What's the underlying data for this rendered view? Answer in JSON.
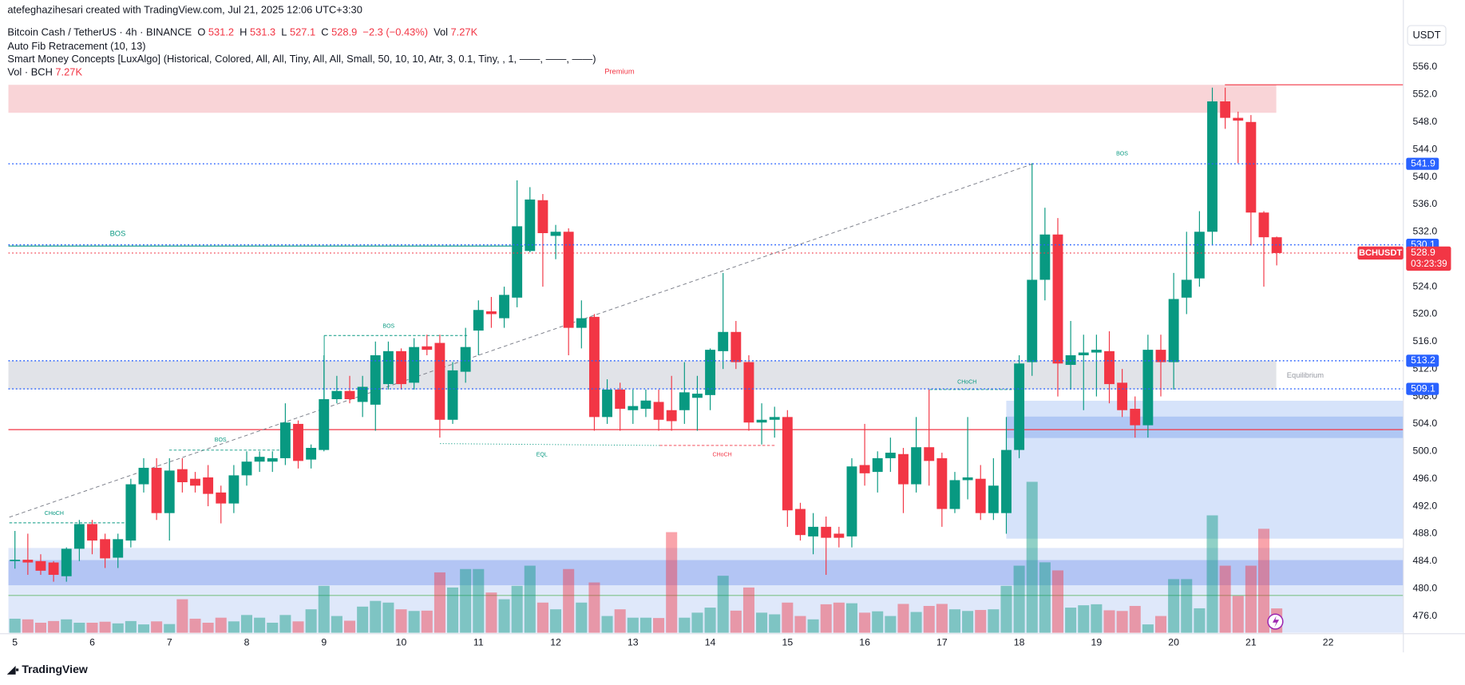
{
  "header": {
    "credit": "atefeghazihesari created with TradingView.com, Jul 21, 2025 12:06 UTC+3:30",
    "symbol": "Bitcoin Cash / TetherUS · 4h · BINANCE",
    "ohlc_labels": [
      "O",
      "H",
      "L",
      "C"
    ],
    "change": "−2.3 (−0.43%)",
    "vol_label": "Vol",
    "volume_label": "7.27K",
    "indicators": [
      "Auto Fib Retracement (10, 13)",
      "Smart Money Concepts [LuxAlgo] (Historical, Colored, All, All, Tiny, All, All, Small, 50, 10, 10, Atr, 3, 0.1, Tiny, , 1, ——, ——, ——)",
      "Vol · BCH"
    ],
    "currency": "USDT",
    "footer": "TradingView"
  },
  "chart_data": {
    "type": "candlestick",
    "up_color": "#089981",
    "down_color": "#f23645",
    "volume_up_color": "rgba(8,153,129,0.45)",
    "volume_down_color": "rgba(242,54,69,0.45)",
    "grid": false,
    "ylim": [
      473.42,
      563.06
    ],
    "yticks": [
      {
        "value": 476,
        "label": "476.0"
      },
      {
        "value": 480,
        "label": "480.0"
      },
      {
        "value": 484,
        "label": "484.0"
      },
      {
        "value": 488,
        "label": "488.0"
      },
      {
        "value": 492,
        "label": "492.0"
      },
      {
        "value": 496,
        "label": "496.0"
      },
      {
        "value": 500,
        "label": "500.0"
      },
      {
        "value": 504,
        "label": "504.0"
      },
      {
        "value": 508,
        "label": "508.0"
      },
      {
        "value": 512,
        "label": "512.0"
      },
      {
        "value": 516,
        "label": "516.0"
      },
      {
        "value": 520,
        "label": "520.0"
      },
      {
        "value": 524,
        "label": "524.0"
      },
      {
        "value": 528,
        "label": "528.0"
      },
      {
        "value": 532,
        "label": "532.0"
      },
      {
        "value": 536,
        "label": "536.0"
      },
      {
        "value": 540,
        "label": "540.0"
      },
      {
        "value": 544,
        "label": "544.0"
      },
      {
        "value": 548,
        "label": "548.0"
      },
      {
        "value": 552,
        "label": "552.0"
      },
      {
        "value": 556,
        "label": "556.0"
      }
    ],
    "categories": [
      "5",
      null,
      null,
      null,
      null,
      null,
      "6",
      null,
      null,
      null,
      null,
      null,
      "7",
      null,
      null,
      null,
      null,
      null,
      "8",
      null,
      null,
      null,
      null,
      null,
      "9",
      null,
      null,
      null,
      null,
      null,
      "10",
      null,
      null,
      null,
      null,
      null,
      "11",
      null,
      null,
      null,
      null,
      null,
      "12",
      null,
      null,
      null,
      null,
      null,
      "13",
      null,
      null,
      null,
      null,
      null,
      "14",
      null,
      null,
      null,
      null,
      null,
      "15",
      null,
      null,
      null,
      null,
      null,
      "16",
      null,
      null,
      null,
      null,
      null,
      "17",
      null,
      null,
      null,
      null,
      null,
      "18",
      null,
      null,
      null,
      null,
      null,
      "19",
      null,
      null,
      null,
      null,
      null,
      "20",
      null,
      null,
      null,
      null,
      null,
      "21",
      null,
      null,
      null,
      null,
      null,
      "22"
    ],
    "open": [
      484,
      484.2,
      484,
      483.8,
      481.8,
      485.8,
      489.4,
      487.2,
      484.5,
      487,
      495.2,
      497.6,
      491,
      497.4,
      496,
      496.2,
      494,
      492.4,
      496.5,
      498.5,
      498.5,
      499,
      504,
      498.8,
      500.2,
      507.6,
      508.8,
      507.2,
      506.8,
      509.8,
      514.6,
      510,
      515.3,
      515.8,
      504.6,
      511.6,
      517.6,
      520.4,
      519.4,
      522.4,
      529.2,
      536.6,
      531.4,
      532,
      518,
      519.6,
      505,
      509,
      506,
      506.2,
      507.2,
      506,
      506,
      507.8,
      508.2,
      514.6,
      517.4,
      513,
      504.2,
      504.6,
      505,
      491.6,
      487.6,
      489,
      488,
      487.6,
      498,
      497,
      499,
      499.6,
      495.2,
      500.6,
      499,
      491.6,
      495.8,
      496,
      491,
      491,
      500.2,
      513,
      525,
      531.6,
      512.6,
      514,
      514.4,
      514.6,
      510,
      506.2,
      503.8,
      514.8,
      513,
      522.4,
      525.2,
      532,
      551,
      548.6,
      548,
      534.8,
      531.2,
      null,
      null,
      null,
      null
    ],
    "high": [
      488.4,
      488,
      485,
      484,
      486,
      490,
      490,
      488,
      488,
      496,
      499,
      499,
      499,
      499,
      497,
      498,
      495,
      498,
      500,
      500,
      500,
      507,
      504.5,
      501,
      514,
      511,
      511,
      511,
      516,
      516,
      515,
      516.5,
      517,
      517,
      513,
      518,
      522,
      522.5,
      524,
      539.5,
      538.5,
      537.5,
      533,
      532.5,
      522,
      520,
      510.5,
      510,
      509,
      509,
      509,
      511,
      513,
      511,
      515,
      526,
      519,
      514,
      507,
      506.5,
      506,
      492.5,
      491,
      490.5,
      489,
      499,
      504,
      500,
      502,
      500.5,
      505,
      509,
      499.8,
      497,
      505,
      498,
      499,
      505,
      514,
      542,
      535.5,
      534,
      519,
      517,
      517,
      517.5,
      512,
      508,
      517,
      517,
      526,
      532,
      535,
      553,
      553,
      549.5,
      549,
      535,
      531.3,
      null,
      null,
      null,
      null
    ],
    "low": [
      482.9,
      482,
      482,
      481,
      481,
      484,
      485,
      483,
      483,
      486,
      494,
      490,
      487,
      494,
      494,
      492,
      489.5,
      491,
      495,
      497,
      497,
      498,
      497.5,
      497.5,
      500,
      507,
      507,
      505,
      503,
      509,
      509,
      509,
      514,
      502,
      504,
      510,
      514,
      518,
      518,
      521,
      529,
      524,
      528,
      514,
      515,
      503,
      504,
      503,
      504,
      505,
      503,
      503,
      504,
      503,
      506,
      512,
      512,
      503,
      501,
      502,
      489,
      487,
      485,
      482,
      486,
      486,
      495,
      494,
      497,
      491,
      494,
      495,
      489,
      491,
      493,
      490,
      490,
      488,
      499,
      511,
      522,
      508,
      509,
      506,
      508,
      507,
      505,
      502,
      502,
      508,
      509,
      520,
      524,
      530,
      547,
      542,
      530,
      524,
      527.1,
      null,
      null,
      null,
      null
    ],
    "close": [
      484.2,
      483.8,
      482.6,
      482,
      485.8,
      489.4,
      487,
      484.4,
      487.2,
      495.2,
      497.6,
      491,
      497.2,
      495.5,
      495,
      493.8,
      492.4,
      496.5,
      498.5,
      499.2,
      499,
      504.2,
      498.6,
      500.5,
      507.6,
      508.8,
      507.6,
      509.4,
      514,
      514.6,
      509.8,
      515.2,
      514.8,
      504.6,
      511.8,
      515.2,
      520.6,
      520,
      522.8,
      532.8,
      536.7,
      531.8,
      532,
      518,
      519.4,
      505,
      509,
      506.2,
      506.6,
      507.4,
      504.6,
      504.4,
      508.6,
      508.4,
      514.8,
      517.4,
      513,
      504.2,
      504.6,
      505,
      491.4,
      487.8,
      489,
      487.4,
      487.4,
      497.8,
      496.8,
      499,
      499.8,
      495.2,
      500.6,
      498.6,
      491.6,
      495.8,
      496.2,
      491,
      495,
      500.2,
      512.8,
      525,
      531.6,
      512.8,
      514,
      514.4,
      514.8,
      509.8,
      506,
      503.8,
      514.8,
      513,
      522.2,
      525,
      532,
      551,
      548.6,
      548.2,
      534.8,
      531.2,
      528.9,
      null,
      null,
      null,
      null
    ],
    "volume": [
      4.2,
      4,
      3,
      3.5,
      4,
      3,
      3,
      3.3,
      2.8,
      3.5,
      2.5,
      3.4,
      2.6,
      10,
      4.2,
      3,
      4.5,
      3.4,
      5.3,
      4.5,
      3,
      5.3,
      3.4,
      7,
      14,
      5,
      3.6,
      7.8,
      9.5,
      9,
      7,
      6.5,
      6.6,
      18,
      13.5,
      19,
      19,
      12,
      10,
      14,
      20,
      9,
      7,
      19,
      9,
      15,
      5,
      7,
      4.5,
      4.5,
      4.4,
      30,
      4.5,
      6,
      7.5,
      17,
      6.6,
      13.5,
      6,
      5.5,
      9,
      5,
      4,
      8.5,
      9,
      8.8,
      6,
      6.4,
      5,
      8.6,
      6.2,
      8,
      8.6,
      7,
      6.5,
      6.8,
      7,
      14,
      20,
      45,
      21,
      18.6,
      7.5,
      8.2,
      8.5,
      6.7,
      6.5,
      8,
      2.5,
      5,
      16,
      16,
      7.3,
      35,
      20,
      11,
      20,
      31,
      7.27,
      null,
      null,
      null,
      null
    ],
    "levels": [
      541.9,
      530.1,
      513.2,
      509.1
    ],
    "symbol_tag": "BCHUSDT",
    "countdown": "03:23:39",
    "annotations": [
      "Premium",
      "Equilibrium",
      "BOS",
      "BOS",
      "BOS",
      "BOS",
      "CHoCH",
      "CHoCH",
      "CHoCH",
      "EQL"
    ]
  }
}
